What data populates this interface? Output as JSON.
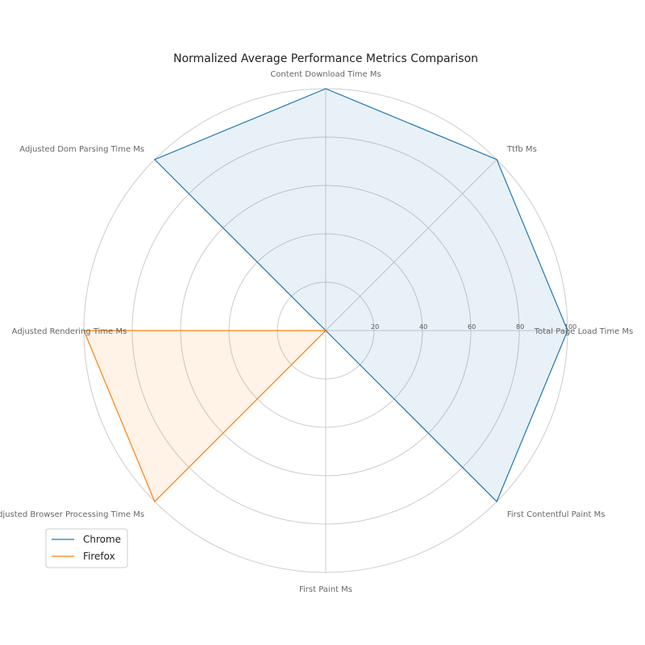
{
  "chart_data": {
    "type": "radar",
    "title": "Normalized Average Performance Metrics Comparison",
    "axes": [
      "Total Page Load Time Ms",
      "Ttfb Ms",
      "Content Download Time Ms",
      "Adjusted Dom Parsing Time Ms",
      "Adjusted Rendering Time Ms",
      "Adjusted Browser Processing Time Ms",
      "First Paint Ms",
      "First Contentful Paint Ms"
    ],
    "rlim": [
      0,
      100
    ],
    "rticks": [
      20,
      40,
      60,
      80,
      100
    ],
    "grid": true,
    "legend_position": "lower-left",
    "series": [
      {
        "name": "Chrome",
        "color": "#1f77b4",
        "values": [
          100,
          100,
          100,
          100,
          0,
          0,
          0,
          100
        ]
      },
      {
        "name": "Firefox",
        "color": "#ff7f0e",
        "values": [
          0,
          0,
          0,
          0,
          100,
          100,
          0,
          0
        ]
      }
    ]
  }
}
